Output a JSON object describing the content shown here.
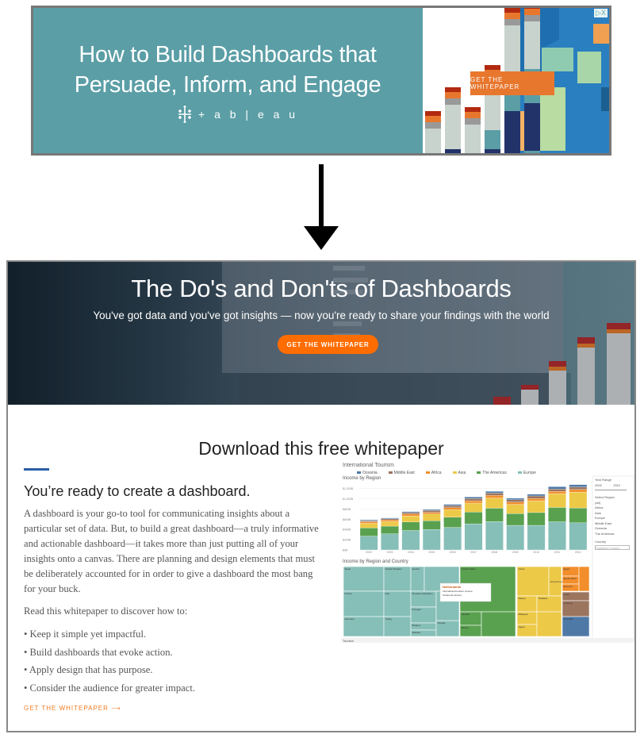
{
  "ad": {
    "title_line1": "How to Build Dashboards that",
    "title_line2": "Persuade, Inform, and Engage",
    "brand": "+ a b | e a u",
    "cta": "GET THE WHITEPAPER",
    "adchoices": "▷X",
    "colors": {
      "background": "#5b9ea6",
      "cta": "#e8772e"
    }
  },
  "arrow_icon": "arrow-down",
  "landing": {
    "hero": {
      "title": "The Do's and Don'ts of Dashboards",
      "subtitle": "You've got data and you've got insights — now you're ready to share your findings with the world",
      "button": "GET THE WHITEPAPER"
    },
    "download_title": "Download this free whitepaper",
    "heading": "You’re ready to create a dashboard.",
    "paragraph": "A dashboard is your go-to tool for communicating insights about a particular set of data. But, to build a great dashboard—a truly informative and actionable dashboard—it takes more than just putting all of your insights onto a canvas. There are planning and design elements that must be deliberately accounted for in order to give a dashboard the most bang for your buck.",
    "read_intro": "Read this whitepaper to discover how to:",
    "bullets": [
      "• Keep it simple yet impactful.",
      "• Build dashboards that evoke action.",
      "• Apply design that has purpose.",
      "• Consider the audience for greater impact."
    ],
    "cta_link": "GET THE WHITEPAPER  ⟶",
    "colors": {
      "accent": "#ff6d00",
      "rule": "#2a5ea8"
    }
  },
  "dashboard": {
    "title": "International Tourism",
    "legend": [
      {
        "name": "Oceania",
        "color": "#4e79a7"
      },
      {
        "name": "Middle East",
        "color": "#9c755f"
      },
      {
        "name": "Africa",
        "color": "#f28e2b"
      },
      {
        "name": "Asia",
        "color": "#edc948"
      },
      {
        "name": "The Americas",
        "color": "#59a14f"
      },
      {
        "name": "Europe",
        "color": "#86bfb8"
      }
    ],
    "bar_title": "Income by Region",
    "y_ticks": [
      "$1,200B",
      "$1,000B",
      "$800B",
      "$600B",
      "$400B",
      "$200B",
      "$0B"
    ],
    "years": [
      "2002",
      "2003",
      "2004",
      "2005",
      "2006",
      "2007",
      "2008",
      "2009",
      "2010",
      "2011",
      "2012"
    ],
    "series": {
      "Europe": [
        270,
        315,
        380,
        400,
        440,
        510,
        555,
        480,
        480,
        550,
        530
      ],
      "The Americas": [
        160,
        150,
        165,
        170,
        200,
        230,
        260,
        230,
        250,
        280,
        290
      ],
      "Asia": [
        90,
        90,
        120,
        130,
        145,
        175,
        200,
        180,
        230,
        270,
        310
      ],
      "Africa": [
        30,
        30,
        35,
        35,
        40,
        45,
        50,
        45,
        45,
        45,
        50
      ],
      "Middle East": [
        20,
        25,
        30,
        35,
        40,
        45,
        45,
        45,
        50,
        45,
        50
      ],
      "Oceania": [
        15,
        15,
        20,
        20,
        25,
        30,
        35,
        30,
        35,
        45,
        45
      ]
    },
    "treemap_title": "Income by Region and Country",
    "treemap_labels": [
      "Spain",
      "United Kingdom",
      "Austria",
      "France",
      "Italy",
      "Russian Federation",
      "Germany",
      "Turkey",
      "Portugal",
      "Belgium",
      "Sweden",
      "Norway",
      "United States",
      "Canada",
      "Mexico",
      "China",
      "Hong Kong",
      "Macao",
      "Thailand",
      "Malaysia",
      "Japan",
      "Egypt",
      "South Africa",
      "Morocco",
      "Israel",
      "Lebanon",
      "Australia"
    ],
    "tooltip": {
      "country": "Netherlands",
      "line1": "International tourism income",
      "line2": "Outbound tourism"
    },
    "filters": {
      "year_range": "Year Range",
      "year_from": "2002",
      "year_to": "2012",
      "select_region": "Select Region",
      "regions": [
        "(All)",
        "Africa",
        "Asia",
        "Europe",
        "Middle East",
        "Oceania",
        "The Americas"
      ],
      "country": "Country",
      "country_placeholder": "Highlight Country"
    },
    "tab": "Tourism"
  }
}
